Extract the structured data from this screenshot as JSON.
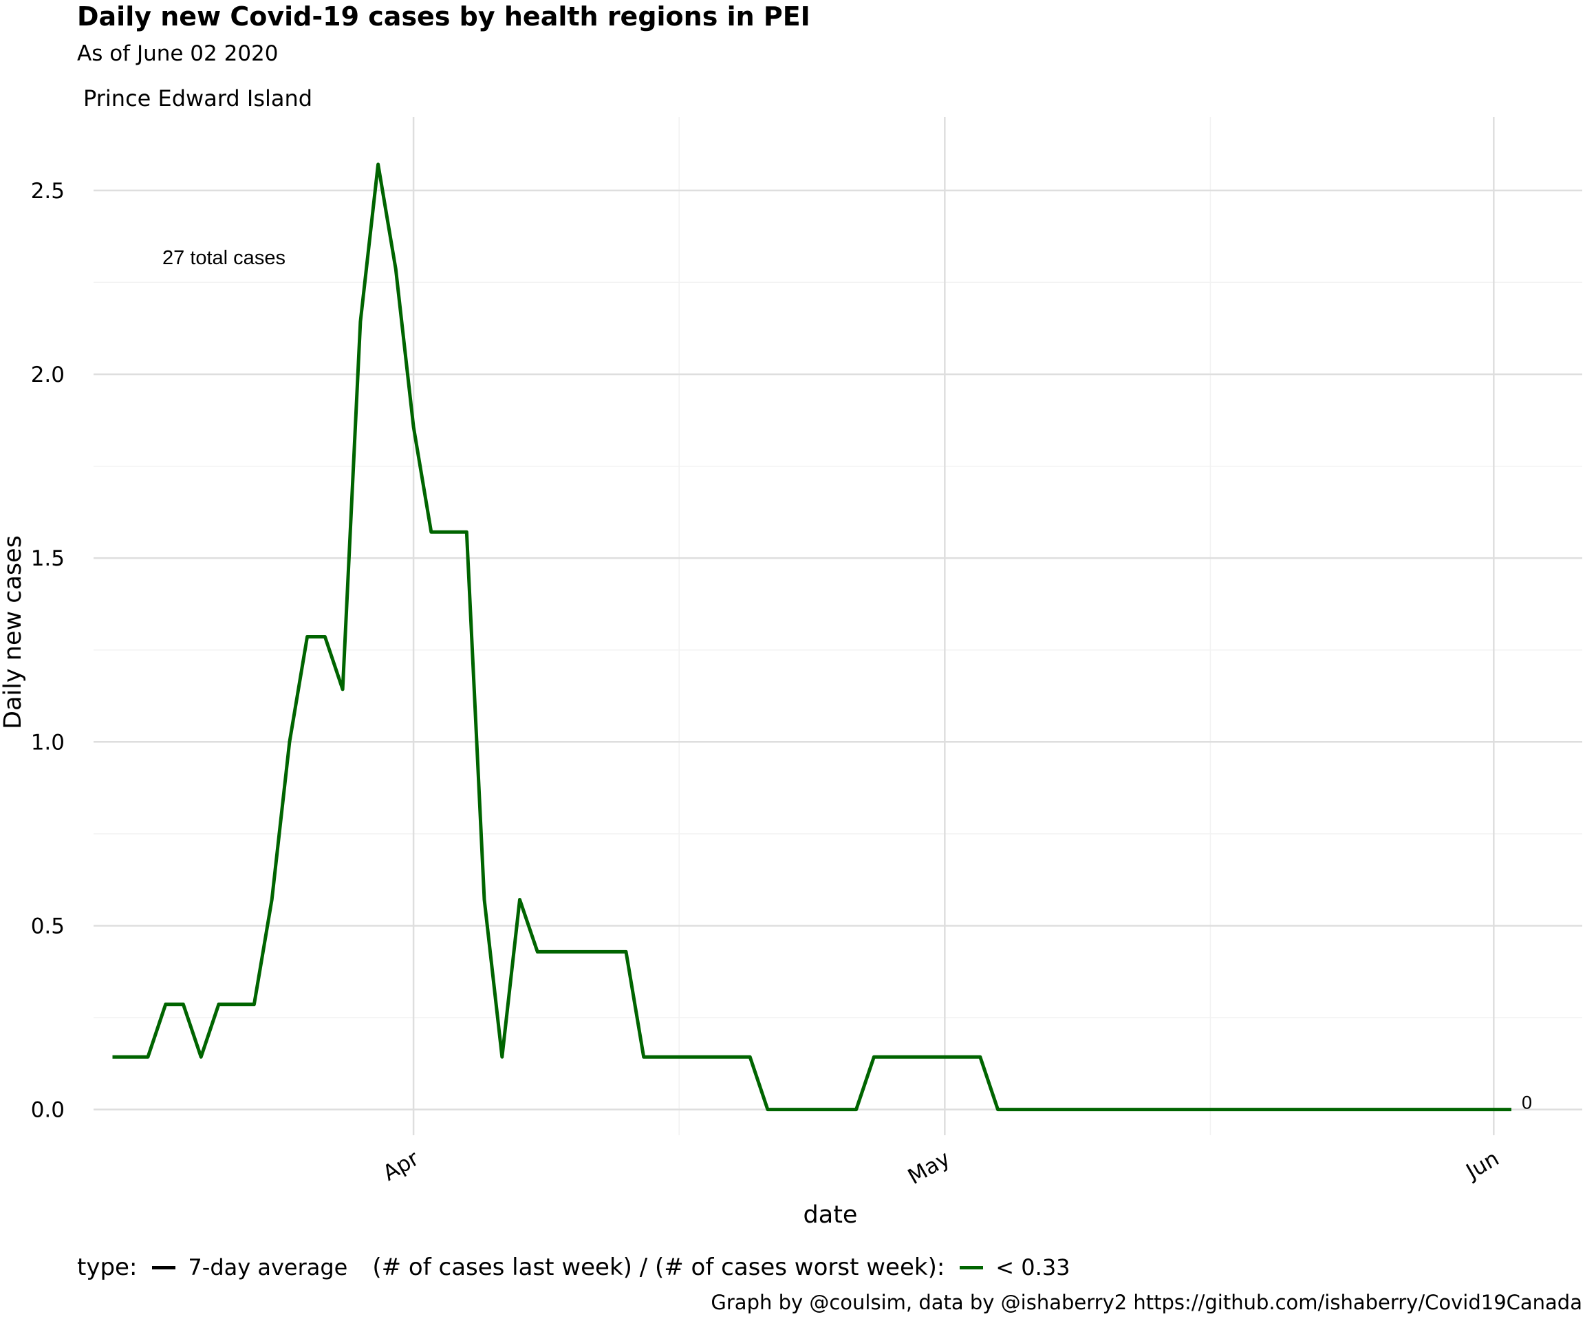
{
  "title": "Daily new Covid-19 cases by health regions in PEI",
  "subtitle": "As of June 02 2020",
  "facet_label": "Prince Edward Island",
  "annotation": "27 total cases",
  "end_label": "0",
  "caption": "Graph by @coulsim, data by @ishaberry2 https://github.com/ishaberry/Covid19Canada",
  "legend": {
    "type_title": "type:",
    "type_entry": "7-day average",
    "type_color": "#000000",
    "ratio_title": "(# of cases last week) / (# of cases worst week):",
    "ratio_entry": "< 0.33",
    "ratio_color": "#006400"
  },
  "chart_data": {
    "type": "line",
    "xlabel": "date",
    "ylabel": "Daily new cases",
    "x_ticks": [
      {
        "date": "2020-04-01",
        "label": "Apr"
      },
      {
        "date": "2020-05-01",
        "label": "May"
      },
      {
        "date": "2020-06-01",
        "label": "Jun"
      }
    ],
    "y_ticks": [
      0.0,
      0.5,
      1.0,
      1.5,
      2.0,
      2.5
    ],
    "ylim": [
      -0.07,
      2.7
    ],
    "xlim": [
      "2020-03-13",
      "2020-06-06"
    ],
    "grid": true,
    "series": [
      {
        "color": "#006400",
        "x": [
          "2020-03-15",
          "2020-03-16",
          "2020-03-17",
          "2020-03-18",
          "2020-03-19",
          "2020-03-20",
          "2020-03-21",
          "2020-03-22",
          "2020-03-23",
          "2020-03-24",
          "2020-03-25",
          "2020-03-26",
          "2020-03-27",
          "2020-03-28",
          "2020-03-29",
          "2020-03-30",
          "2020-03-31",
          "2020-04-01",
          "2020-04-02",
          "2020-04-03",
          "2020-04-04",
          "2020-04-05",
          "2020-04-06",
          "2020-04-07",
          "2020-04-08",
          "2020-04-09",
          "2020-04-10",
          "2020-04-11",
          "2020-04-12",
          "2020-04-13",
          "2020-04-14",
          "2020-04-15",
          "2020-04-16",
          "2020-04-17",
          "2020-04-18",
          "2020-04-19",
          "2020-04-20",
          "2020-04-21",
          "2020-04-22",
          "2020-04-23",
          "2020-04-24",
          "2020-04-25",
          "2020-04-26",
          "2020-04-27",
          "2020-04-28",
          "2020-04-29",
          "2020-04-30",
          "2020-05-01",
          "2020-05-02",
          "2020-05-03",
          "2020-05-04",
          "2020-05-05",
          "2020-05-06",
          "2020-05-07",
          "2020-05-08",
          "2020-05-09",
          "2020-05-10",
          "2020-05-11",
          "2020-05-12",
          "2020-05-13",
          "2020-05-14",
          "2020-05-15",
          "2020-05-16",
          "2020-05-17",
          "2020-05-18",
          "2020-05-19",
          "2020-05-20",
          "2020-05-21",
          "2020-05-22",
          "2020-05-23",
          "2020-05-24",
          "2020-05-25",
          "2020-05-26",
          "2020-05-27",
          "2020-05-28",
          "2020-05-29",
          "2020-05-30",
          "2020-05-31",
          "2020-06-01",
          "2020-06-02"
        ],
        "values": [
          0.143,
          0.143,
          0.143,
          0.286,
          0.286,
          0.143,
          0.286,
          0.286,
          0.286,
          0.571,
          1.0,
          1.286,
          1.286,
          1.143,
          2.143,
          2.571,
          2.286,
          1.857,
          1.571,
          1.571,
          1.571,
          0.571,
          0.143,
          0.571,
          0.429,
          0.429,
          0.429,
          0.429,
          0.429,
          0.429,
          0.143,
          0.143,
          0.143,
          0.143,
          0.143,
          0.143,
          0.143,
          0.0,
          0.0,
          0.0,
          0.0,
          0.0,
          0.0,
          0.143,
          0.143,
          0.143,
          0.143,
          0.143,
          0.143,
          0.143,
          0.0,
          0.0,
          0.0,
          0.0,
          0.0,
          0.0,
          0.0,
          0.0,
          0.0,
          0.0,
          0.0,
          0.0,
          0.0,
          0.0,
          0.0,
          0.0,
          0.0,
          0.0,
          0.0,
          0.0,
          0.0,
          0.0,
          0.0,
          0.0,
          0.0,
          0.0,
          0.0,
          0.0,
          0.0,
          0.0
        ]
      }
    ]
  }
}
